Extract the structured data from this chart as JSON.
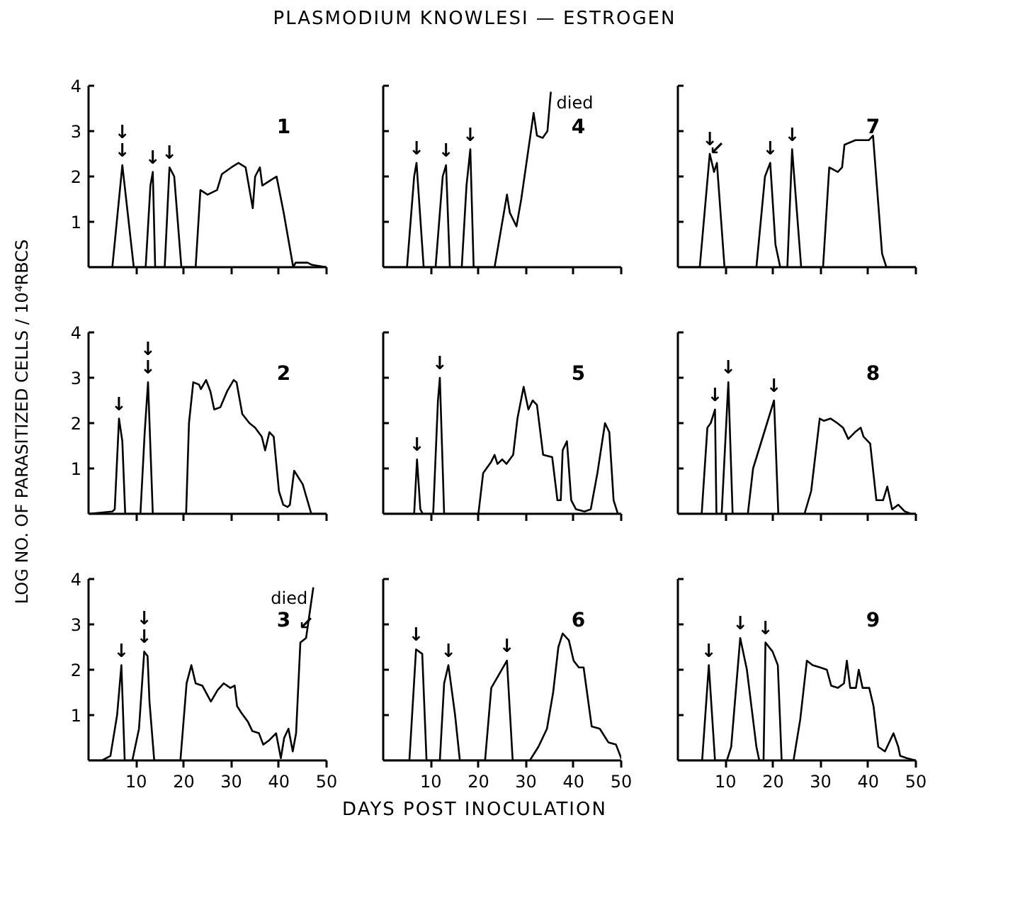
{
  "chart_data": [
    {
      "type": "line",
      "title": "PLASMODIUM  KNOWLESI — ESTROGEN",
      "xlim": [
        0,
        50
      ],
      "ylim": [
        0,
        4
      ],
      "xticks": [
        10,
        20,
        30,
        40,
        50
      ],
      "yticks": [
        1,
        2,
        3,
        4
      ],
      "tick_labels": "y",
      "x": [
        0,
        5,
        7.1,
        9.5,
        12,
        13,
        13.5,
        14,
        16,
        17,
        18,
        19.5,
        22.5,
        23.5,
        25,
        27,
        28,
        30,
        31.5,
        33,
        34.5,
        35,
        36,
        36.5,
        38,
        39.5,
        41,
        43,
        43.5,
        46,
        47,
        50
      ],
      "series": [
        {
          "color": "#000000",
          "values": [
            0,
            0,
            2.25,
            0,
            0,
            1.8,
            2.1,
            0,
            0,
            2.2,
            2.0,
            0,
            0,
            1.7,
            1.6,
            1.7,
            2.05,
            2.2,
            2.3,
            2.2,
            1.3,
            2.0,
            2.2,
            1.8,
            1.9,
            2.0,
            1.2,
            0,
            0.1,
            0.1,
            0.05,
            0
          ]
        }
      ],
      "annotations": [
        "1",
        {
          "text": "↓",
          "x": 7.1,
          "y": 2.25
        },
        {
          "text": "↓",
          "x": 7.1,
          "y": 2.25
        },
        {
          "text": "↓",
          "x": 13.5,
          "y": 2.1
        },
        {
          "text": "↓",
          "x": 17,
          "y": 2.2
        }
      ]
    },
    {
      "type": "line",
      "xlim": [
        0,
        50
      ],
      "ylim": [
        0,
        4
      ],
      "xticks": [
        10,
        20,
        30,
        40,
        50
      ],
      "yticks": [
        1,
        2,
        3,
        4
      ],
      "tick_labels": false,
      "x": [
        0,
        5,
        6.5,
        7,
        8.5,
        11,
        12.5,
        13.2,
        14,
        16.5,
        17.5,
        18.3,
        19,
        23.4,
        26,
        26.6,
        28,
        29,
        31.6,
        32.3,
        33.5,
        34.5,
        35.2
      ],
      "series": [
        {
          "color": "#000000",
          "values": [
            0,
            0,
            2.0,
            2.3,
            0,
            0,
            2.0,
            2.25,
            0,
            0,
            1.8,
            2.6,
            0,
            0,
            1.6,
            1.2,
            0.9,
            1.5,
            3.4,
            2.9,
            2.85,
            3.0,
            3.85
          ]
        }
      ],
      "annotations": [
        "4",
        {
          "text": "↓",
          "x": 7,
          "y": 2.3
        },
        {
          "text": "↓",
          "x": 13.2,
          "y": 2.25
        },
        {
          "text": "↓",
          "x": 18.3,
          "y": 2.6
        },
        {
          "text": "died",
          "x": 35.2,
          "y": 3.85
        }
      ]
    },
    {
      "type": "line",
      "xlim": [
        0,
        50
      ],
      "ylim": [
        0,
        4
      ],
      "xticks": [
        10,
        20,
        30,
        40,
        50
      ],
      "yticks": [
        1,
        2,
        3,
        4
      ],
      "tick_labels": false,
      "x": [
        0,
        4.6,
        6.7,
        7.6,
        8.2,
        9.8,
        16.5,
        18.3,
        19.4,
        20.5,
        21.5,
        23,
        24,
        25.9,
        30.5,
        31.8,
        33.6,
        34.5,
        35,
        37.3,
        40.1,
        41,
        42.9,
        43.8,
        50
      ],
      "series": [
        {
          "color": "#000000",
          "values": [
            0,
            0,
            2.5,
            2.1,
            2.3,
            0,
            0,
            2.0,
            2.3,
            0.5,
            0,
            0,
            2.6,
            0,
            0,
            2.2,
            2.1,
            2.2,
            2.7,
            2.8,
            2.8,
            2.9,
            0.3,
            0,
            0
          ]
        }
      ],
      "annotations": [
        "7",
        {
          "text": "↓",
          "x": 6.7,
          "y": 2.5
        },
        {
          "text": "↙",
          "x": 8.2,
          "y": 2.3
        },
        {
          "text": "↓",
          "x": 19.4,
          "y": 2.3
        },
        {
          "text": "↓",
          "x": 24,
          "y": 2.6
        }
      ]
    },
    {
      "type": "line",
      "ylabel": "LOG NO. OF PARASITIZED CELLS / 10⁴RBCS",
      "xlim": [
        0,
        50
      ],
      "ylim": [
        0,
        4
      ],
      "xticks": [
        10,
        20,
        30,
        40,
        50
      ],
      "yticks": [
        1,
        2,
        3,
        4
      ],
      "tick_labels": "y",
      "x": [
        0,
        5,
        5.5,
        6.4,
        7.1,
        7.7,
        10.9,
        11.8,
        12.5,
        13.5,
        20.5,
        21.1,
        22,
        23.2,
        23.6,
        24.7,
        25.6,
        26.4,
        27.7,
        29.1,
        30.5,
        31.1,
        32.3,
        33.8,
        35,
        36.4,
        37.1,
        38,
        38.9,
        40,
        40.9,
        41.8,
        42.3,
        43.2,
        45,
        46.8,
        50
      ],
      "series": [
        {
          "color": "#000000",
          "values": [
            0,
            0.05,
            0.1,
            2.1,
            1.6,
            0,
            0,
            1.8,
            2.9,
            0,
            0,
            2.0,
            2.9,
            2.85,
            2.75,
            2.95,
            2.7,
            2.3,
            2.35,
            2.7,
            2.95,
            2.9,
            2.2,
            2.0,
            1.9,
            1.7,
            1.4,
            1.8,
            1.7,
            0.5,
            0.2,
            0.15,
            0.2,
            0.95,
            0.65,
            0,
            0
          ]
        }
      ],
      "annotations": [
        "2",
        {
          "text": "↓",
          "x": 6.4,
          "y": 2.1
        },
        {
          "text": "↓",
          "x": 12.5,
          "y": 2.9
        },
        {
          "text": "↓",
          "x": 12.5,
          "y": 2.9
        }
      ]
    },
    {
      "type": "line",
      "xlim": [
        0,
        50
      ],
      "ylim": [
        0,
        4
      ],
      "xticks": [
        10,
        20,
        30,
        40,
        50
      ],
      "yticks": [
        1,
        2,
        3,
        4
      ],
      "tick_labels": false,
      "x": [
        0,
        6.5,
        7.1,
        7.8,
        8.3,
        10.5,
        11.5,
        11.9,
        12.8,
        20,
        21,
        22.7,
        23.4,
        24,
        25,
        25.9,
        27.3,
        28.2,
        29.5,
        30.5,
        31.4,
        32.3,
        33.6,
        35.5,
        36.6,
        37.3,
        37.7,
        38.6,
        39.5,
        40.5,
        42.3,
        43.6,
        45,
        46.6,
        47.5,
        48.4,
        49.3,
        50
      ],
      "series": [
        {
          "color": "#000000",
          "values": [
            0,
            0,
            1.2,
            0.1,
            0,
            0,
            2.5,
            3.0,
            0,
            0,
            0.9,
            1.15,
            1.3,
            1.1,
            1.2,
            1.1,
            1.3,
            2.1,
            2.8,
            2.3,
            2.5,
            2.4,
            1.3,
            1.25,
            0.3,
            0.3,
            1.4,
            1.6,
            0.3,
            0.1,
            0.05,
            0.1,
            0.9,
            2.0,
            1.8,
            0.3,
            0,
            0
          ]
        }
      ],
      "annotations": [
        "5",
        {
          "text": "↓",
          "x": 7.1,
          "y": 1.2
        },
        {
          "text": "↓",
          "x": 11.9,
          "y": 3.0
        }
      ]
    },
    {
      "type": "line",
      "xlim": [
        0,
        50
      ],
      "ylim": [
        0,
        4
      ],
      "xticks": [
        10,
        20,
        30,
        40,
        50
      ],
      "yticks": [
        1,
        2,
        3,
        4
      ],
      "tick_labels": false,
      "x": [
        0,
        5,
        6.2,
        6.9,
        7.8,
        8.1,
        9.2,
        10.6,
        11.5,
        14.7,
        15.8,
        20.2,
        21.1,
        26.6,
        28,
        29.8,
        30.7,
        32.1,
        33.5,
        34.7,
        35.8,
        37.2,
        38.4,
        39,
        40.4,
        41.7,
        43.1,
        44,
        45,
        46.3,
        47.7,
        49,
        50
      ],
      "series": [
        {
          "color": "#000000",
          "values": [
            0,
            0,
            1.9,
            2.0,
            2.3,
            0,
            0,
            2.9,
            0,
            0,
            1.0,
            2.5,
            0,
            0,
            0.5,
            2.1,
            2.05,
            2.1,
            2.0,
            1.9,
            1.65,
            1.8,
            1.9,
            1.7,
            1.55,
            0.3,
            0.3,
            0.6,
            0.1,
            0.2,
            0.05,
            0,
            0
          ]
        }
      ],
      "annotations": [
        "8",
        {
          "text": "↓",
          "x": 7.8,
          "y": 2.3
        },
        {
          "text": "↓",
          "x": 10.6,
          "y": 2.9
        },
        {
          "text": "↓",
          "x": 20.2,
          "y": 2.5
        }
      ]
    },
    {
      "type": "line",
      "xlim": [
        0,
        50
      ],
      "ylim": [
        0,
        4
      ],
      "xticks": [
        10,
        20,
        30,
        40,
        50
      ],
      "yticks": [
        1,
        2,
        3,
        4
      ],
      "x": [
        0,
        2.8,
        4.6,
        6,
        6.9,
        7.6,
        9.2,
        10.6,
        11.7,
        12.4,
        12.8,
        13.8,
        19.3,
        20.6,
        21.6,
        22.5,
        23.9,
        25.7,
        27.1,
        28.4,
        29.8,
        30.7,
        31.2,
        32.1,
        33.5,
        34.4,
        35.8,
        36.7,
        38,
        39.4,
        40.4,
        41.1,
        42,
        42.9,
        43.6,
        44.5,
        45.7,
        47.2
      ],
      "series": [
        {
          "color": "#000000",
          "values": [
            0,
            0,
            0.1,
            1.0,
            2.1,
            0,
            0,
            0.7,
            2.4,
            2.3,
            1.3,
            0,
            0,
            1.7,
            2.1,
            1.7,
            1.65,
            1.3,
            1.55,
            1.7,
            1.6,
            1.65,
            1.2,
            1.05,
            0.85,
            0.65,
            0.6,
            0.35,
            0.45,
            0.6,
            0.05,
            0.5,
            0.7,
            0.2,
            0.6,
            2.6,
            2.7,
            3.8
          ]
        }
      ],
      "annotations": [
        "3",
        {
          "text": "↓",
          "x": 6.9,
          "y": 2.1
        },
        {
          "text": "↓",
          "x": 11.7,
          "y": 2.4
        },
        {
          "text": "↓",
          "x": 11.7,
          "y": 2.4
        },
        {
          "text": "↙",
          "x": 45.7,
          "y": 2.7
        },
        {
          "text": "died",
          "x": 47.2,
          "y": 3.8
        }
      ]
    },
    {
      "type": "line",
      "xlabel": "DAYS   POST   INOCULATION",
      "xlim": [
        0,
        50
      ],
      "ylim": [
        0,
        4
      ],
      "xticks": [
        10,
        20,
        30,
        40,
        50
      ],
      "yticks": [
        1,
        2,
        3,
        4
      ],
      "tick_labels": "x",
      "x": [
        0,
        5.5,
        6.9,
        8.2,
        9.1,
        11.9,
        12.8,
        13.7,
        15.1,
        16.1,
        21.4,
        22.7,
        23.8,
        26,
        27.2,
        30.8,
        32.6,
        34.4,
        35.7,
        36.8,
        37.7,
        39,
        40,
        41.1,
        42.1,
        43.8,
        45.5,
        47.3,
        48.9,
        50
      ],
      "series": [
        {
          "color": "#000000",
          "values": [
            0,
            0,
            2.45,
            2.35,
            0,
            0,
            1.7,
            2.1,
            1.0,
            0,
            0,
            1.6,
            1.8,
            2.2,
            0,
            0,
            0.3,
            0.7,
            1.5,
            2.5,
            2.8,
            2.65,
            2.2,
            2.05,
            2.05,
            0.75,
            0.7,
            0.4,
            0.35,
            0.05
          ]
        }
      ],
      "annotations": [
        "6",
        {
          "text": "↓",
          "x": 6.9,
          "y": 2.45
        },
        {
          "text": "↓",
          "x": 13.7,
          "y": 2.1
        },
        {
          "text": "↓",
          "x": 26,
          "y": 2.2
        }
      ]
    },
    {
      "type": "line",
      "xlim": [
        0,
        50
      ],
      "ylim": [
        0,
        4
      ],
      "xticks": [
        10,
        20,
        30,
        40,
        50
      ],
      "yticks": [
        1,
        2,
        3,
        4
      ],
      "tick_labels": "x",
      "x": [
        0,
        5.1,
        6.5,
        7.8,
        10.3,
        11.2,
        13.1,
        14.5,
        16.5,
        17.1,
        18,
        18.4,
        19.9,
        21,
        21.8,
        24.3,
        25.7,
        27.1,
        28.3,
        29.9,
        31.3,
        32.2,
        33.6,
        34.9,
        35.5,
        36.2,
        37.4,
        38,
        38.8,
        40.2,
        41.1,
        42.1,
        43.5,
        45.3,
        46.3,
        46.7,
        48.1,
        50
      ],
      "series": [
        {
          "color": "#000000",
          "values": [
            0,
            0,
            2.1,
            0,
            0,
            0.3,
            2.7,
            2.0,
            0.3,
            0,
            0,
            2.6,
            2.4,
            2.1,
            0,
            0,
            0.9,
            2.2,
            2.1,
            2.05,
            2.0,
            1.65,
            1.6,
            1.7,
            2.2,
            1.6,
            1.6,
            2.0,
            1.6,
            1.6,
            1.2,
            0.3,
            0.2,
            0.6,
            0.3,
            0.1,
            0.05,
            0
          ]
        }
      ],
      "annotations": [
        "9",
        {
          "text": "↓",
          "x": 6.5,
          "y": 2.1
        },
        {
          "text": "↓",
          "x": 13.1,
          "y": 2.7
        },
        {
          "text": "↓",
          "x": 18.4,
          "y": 2.6
        }
      ]
    }
  ]
}
